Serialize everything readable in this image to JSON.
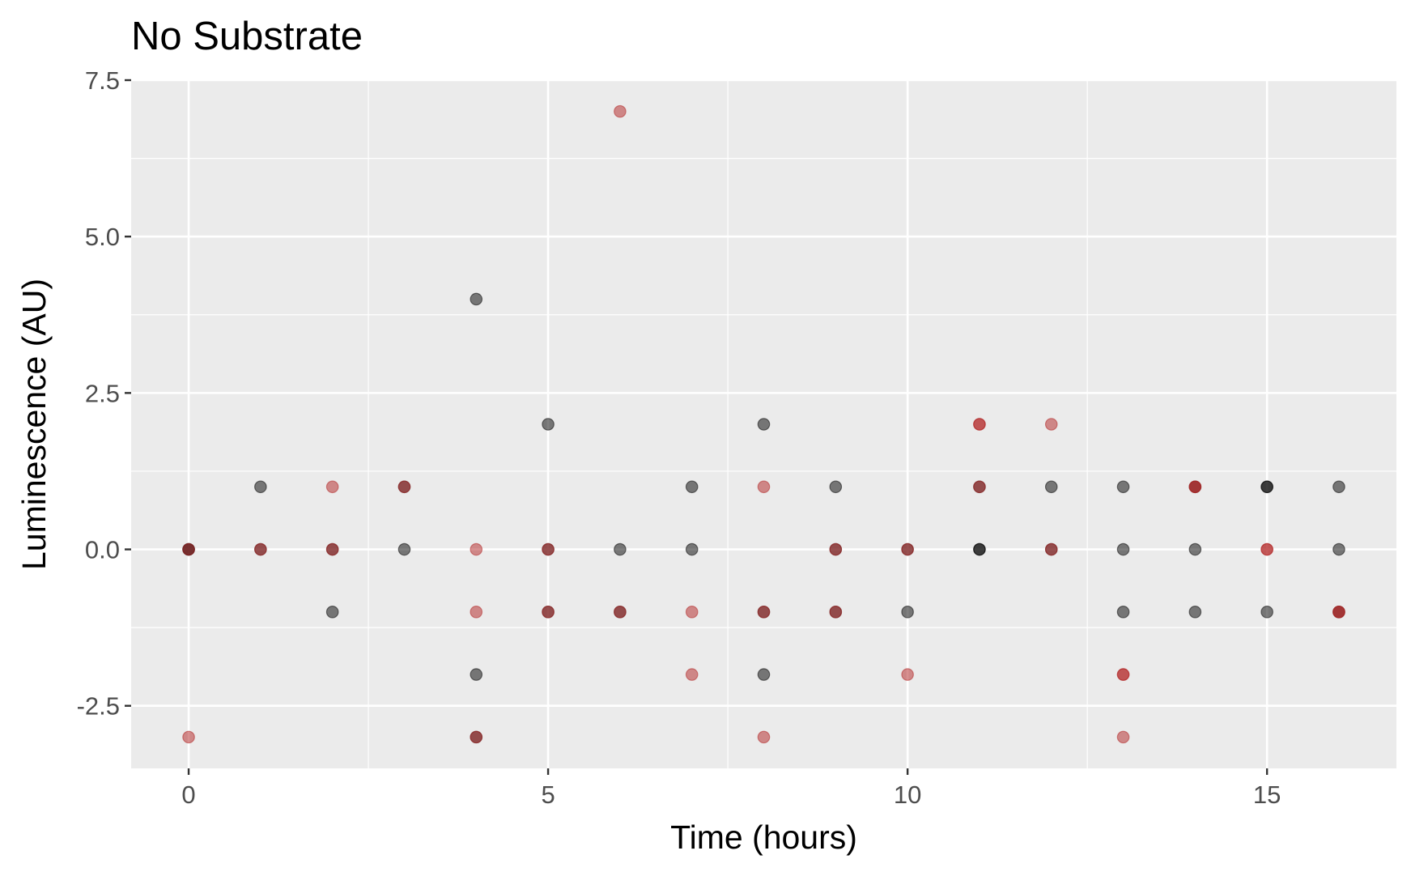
{
  "chart_data": {
    "type": "scatter",
    "title": "No Substrate",
    "xlabel": "Time (hours)",
    "ylabel": "Luminescence (AU)",
    "xlim": [
      -0.8,
      16.8
    ],
    "ylim": [
      -3.5,
      7.5
    ],
    "x_ticks": [
      {
        "value": 0,
        "label": "0"
      },
      {
        "value": 5,
        "label": "5"
      },
      {
        "value": 10,
        "label": "10"
      },
      {
        "value": 15,
        "label": "15"
      }
    ],
    "y_ticks": [
      {
        "value": -2.5,
        "label": "-2.5"
      },
      {
        "value": 0,
        "label": "0.0"
      },
      {
        "value": 2.5,
        "label": "2.5"
      },
      {
        "value": 5,
        "label": "5.0"
      },
      {
        "value": 7.5,
        "label": "7.5"
      }
    ],
    "x_minor_ticks": [
      2.5,
      7.5,
      12.5
    ],
    "y_minor_ticks": [
      -1.25,
      1.25,
      3.75,
      6.25
    ],
    "grid": true,
    "legend": "none",
    "colors": {
      "panel_background": "#ebebeb",
      "grid_line": "#ffffff",
      "series_dark": "#000000",
      "series_red": "#b22222"
    },
    "point_opacity": 0.5,
    "series": [
      {
        "color": "#000000",
        "points": [
          [
            0,
            0
          ],
          [
            0,
            0
          ],
          [
            1,
            1
          ],
          [
            1,
            0
          ],
          [
            2,
            0
          ],
          [
            2,
            -1
          ],
          [
            3,
            1
          ],
          [
            3,
            0
          ],
          [
            4,
            4
          ],
          [
            4,
            -2
          ],
          [
            4,
            -3
          ],
          [
            5,
            2
          ],
          [
            5,
            0
          ],
          [
            5,
            -1
          ],
          [
            6,
            0
          ],
          [
            6,
            -1
          ],
          [
            7,
            1
          ],
          [
            7,
            0
          ],
          [
            8,
            2
          ],
          [
            8,
            -1
          ],
          [
            8,
            -2
          ],
          [
            9,
            1
          ],
          [
            9,
            0
          ],
          [
            9,
            -1
          ],
          [
            10,
            0
          ],
          [
            10,
            -1
          ],
          [
            11,
            1
          ],
          [
            11,
            0
          ],
          [
            11,
            0
          ],
          [
            12,
            1
          ],
          [
            12,
            0
          ],
          [
            13,
            1
          ],
          [
            13,
            0
          ],
          [
            13,
            -1
          ],
          [
            14,
            1
          ],
          [
            14,
            0
          ],
          [
            14,
            -1
          ],
          [
            15,
            1
          ],
          [
            15,
            1
          ],
          [
            15,
            -1
          ],
          [
            16,
            1
          ],
          [
            16,
            0
          ],
          [
            16,
            -1
          ]
        ]
      },
      {
        "color": "#b22222",
        "points": [
          [
            0,
            0
          ],
          [
            0,
            -3
          ],
          [
            1,
            0
          ],
          [
            2,
            1
          ],
          [
            2,
            0
          ],
          [
            3,
            1
          ],
          [
            4,
            0
          ],
          [
            4,
            -1
          ],
          [
            4,
            -3
          ],
          [
            5,
            0
          ],
          [
            5,
            -1
          ],
          [
            6,
            7
          ],
          [
            6,
            -1
          ],
          [
            7,
            -1
          ],
          [
            7,
            -2
          ],
          [
            8,
            1
          ],
          [
            8,
            -1
          ],
          [
            8,
            -3
          ],
          [
            9,
            0
          ],
          [
            9,
            -1
          ],
          [
            10,
            0
          ],
          [
            10,
            -2
          ],
          [
            11,
            2
          ],
          [
            11,
            2
          ],
          [
            11,
            1
          ],
          [
            12,
            2
          ],
          [
            12,
            0
          ],
          [
            13,
            -2
          ],
          [
            13,
            -2
          ],
          [
            13,
            -3
          ],
          [
            14,
            1
          ],
          [
            14,
            1
          ],
          [
            15,
            0
          ],
          [
            15,
            0
          ],
          [
            16,
            -1
          ],
          [
            16,
            -1
          ]
        ]
      }
    ]
  }
}
